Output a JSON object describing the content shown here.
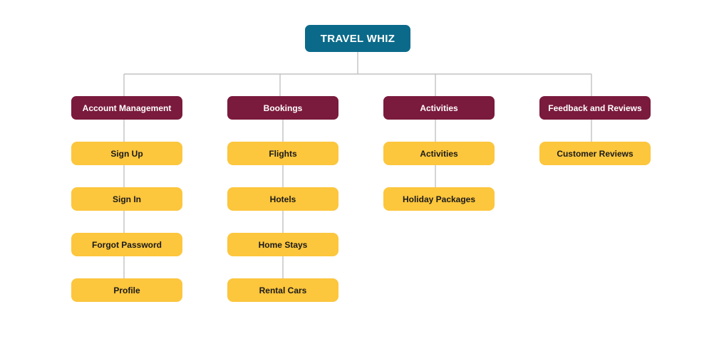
{
  "colors": {
    "root_bg": "#0b6a8a",
    "root_text": "#ffffff",
    "category_bg": "#7a1a3c",
    "category_text": "#ffffff",
    "leaf_bg": "#fcc63d",
    "leaf_text": "#1a1a1a",
    "connector": "#b8b8b8"
  },
  "root": {
    "label": "TRAVEL WHIZ"
  },
  "categories": [
    {
      "label": "Account Management",
      "children": [
        "Sign Up",
        "Sign In",
        "Forgot Password",
        "Profile"
      ]
    },
    {
      "label": "Bookings",
      "children": [
        "Flights",
        "Hotels",
        "Home Stays",
        "Rental Cars"
      ]
    },
    {
      "label": "Activities",
      "children": [
        "Activities",
        "Holiday Packages"
      ]
    },
    {
      "label": "Feedback and Reviews",
      "children": [
        "Customer Reviews"
      ]
    }
  ]
}
